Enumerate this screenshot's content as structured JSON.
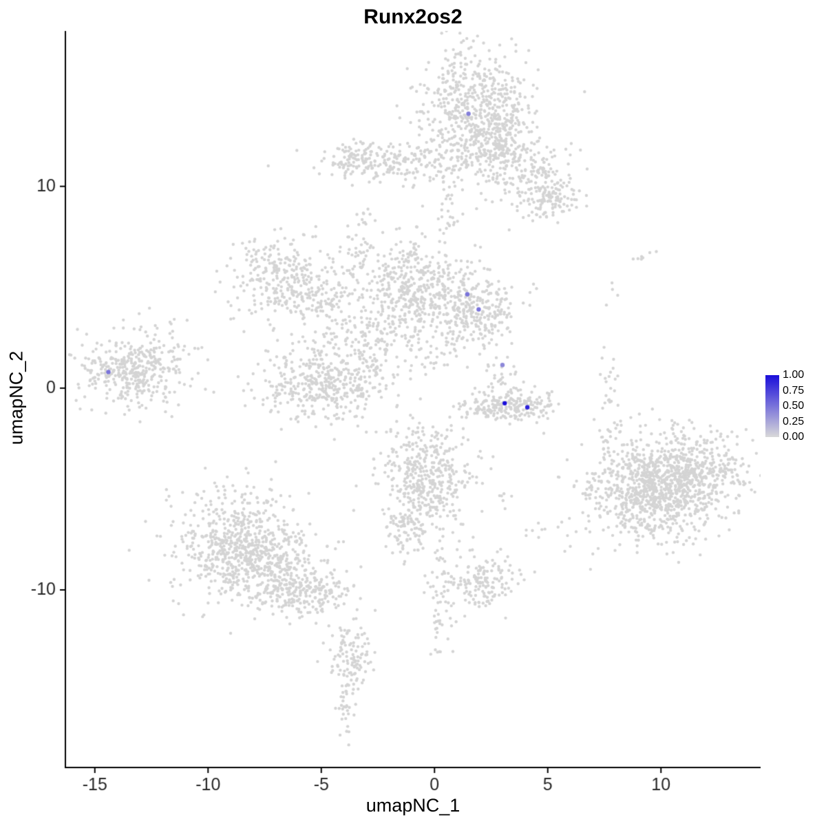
{
  "chart_data": {
    "type": "scatter",
    "title": "Runx2os2",
    "xlabel": "umapNC_1",
    "ylabel": "umapNC_2",
    "xlim": [
      -16.3,
      14.4
    ],
    "ylim": [
      -18.8,
      17.7
    ],
    "xticks": [
      -15,
      -10,
      -5,
      0,
      5,
      10
    ],
    "yticks": [
      -10,
      0,
      10
    ],
    "grid": false,
    "point_color_zero": "#D4D4D4",
    "axis_color": "#000000",
    "tick_label_color": "#262626",
    "legend": {
      "position": "right",
      "ticks": [
        "1.00",
        "0.75",
        "0.50",
        "0.25",
        "0.00"
      ],
      "color_high": "#1A0EDA",
      "color_low": "#D9D9D9"
    },
    "background_clusters": [
      {
        "cx": 1.8,
        "cy": 13.7,
        "sx": 1.25,
        "sy": 1.6,
        "n": 620
      },
      {
        "cx": 3.0,
        "cy": 12.0,
        "sx": 0.7,
        "sy": 0.9,
        "n": 150
      },
      {
        "cx": 4.3,
        "cy": 10.5,
        "sx": 0.9,
        "sy": 0.9,
        "n": 150
      },
      {
        "cx": 5.3,
        "cy": 9.4,
        "sx": 0.65,
        "sy": 0.5,
        "n": 90
      },
      {
        "cx": -1.6,
        "cy": 11.2,
        "sx": 1.6,
        "sy": 0.5,
        "n": 200
      },
      {
        "cx": -3.6,
        "cy": 11.4,
        "sx": 0.5,
        "sy": 0.45,
        "n": 60
      },
      {
        "cx": 0.6,
        "cy": 8.6,
        "sx": 0.3,
        "sy": 1.1,
        "n": 28
      },
      {
        "cx": -3.1,
        "cy": 8.4,
        "sx": 0.3,
        "sy": 0.25,
        "n": 10
      },
      {
        "cx": -6.9,
        "cy": 5.5,
        "sx": 1.0,
        "sy": 1.0,
        "n": 260
      },
      {
        "cx": -5.0,
        "cy": 4.4,
        "sx": 0.9,
        "sy": 0.7,
        "n": 110
      },
      {
        "cx": -3.4,
        "cy": 6.4,
        "sx": 0.5,
        "sy": 0.9,
        "n": 45
      },
      {
        "cx": -0.9,
        "cy": 4.8,
        "sx": 1.05,
        "sy": 1.2,
        "n": 430
      },
      {
        "cx": 1.9,
        "cy": 4.0,
        "sx": 0.85,
        "sy": 0.95,
        "n": 270
      },
      {
        "cx": -2.7,
        "cy": 2.6,
        "sx": 1.4,
        "sy": 0.9,
        "n": 120
      },
      {
        "cx": -13.3,
        "cy": 0.9,
        "sx": 1.2,
        "sy": 0.95,
        "n": 380
      },
      {
        "cx": -11.2,
        "cy": 2.0,
        "sx": 0.7,
        "sy": 0.5,
        "n": 16
      },
      {
        "cx": -5.0,
        "cy": 0.2,
        "sx": 1.4,
        "sy": 1.0,
        "n": 400
      },
      {
        "cx": 3.2,
        "cy": -0.9,
        "sx": 1.05,
        "sy": 0.35,
        "n": 230
      },
      {
        "cx": 3.0,
        "cy": 0.6,
        "sx": 0.45,
        "sy": 0.65,
        "n": 32
      },
      {
        "cx": -0.3,
        "cy": -4.4,
        "sx": 1.0,
        "sy": 1.3,
        "n": 420
      },
      {
        "cx": -1.3,
        "cy": -6.8,
        "sx": 0.5,
        "sy": 0.8,
        "n": 90
      },
      {
        "cx": -8.7,
        "cy": -7.6,
        "sx": 1.4,
        "sy": 1.3,
        "n": 560
      },
      {
        "cx": -7.3,
        "cy": -9.0,
        "sx": 1.2,
        "sy": 0.9,
        "n": 260
      },
      {
        "cx": -5.6,
        "cy": -10.2,
        "sx": 1.0,
        "sy": 0.6,
        "n": 190
      },
      {
        "cx": -3.8,
        "cy": -13.4,
        "sx": 0.45,
        "sy": 0.9,
        "n": 110
      },
      {
        "cx": -3.9,
        "cy": -15.9,
        "sx": 0.2,
        "sy": 0.8,
        "n": 32
      },
      {
        "cx": 10.2,
        "cy": -4.6,
        "sx": 1.6,
        "sy": 1.3,
        "n": 620
      },
      {
        "cx": 9.3,
        "cy": -5.7,
        "sx": 1.3,
        "sy": 1.0,
        "n": 330
      },
      {
        "cx": 11.3,
        "cy": -4.0,
        "sx": 1.2,
        "sy": 1.0,
        "n": 280
      },
      {
        "cx": 2.1,
        "cy": -9.6,
        "sx": 0.75,
        "sy": 0.65,
        "n": 150
      },
      {
        "cx": 0.3,
        "cy": -10.5,
        "sx": 0.3,
        "sy": 1.4,
        "n": 55
      },
      {
        "cx": 7.7,
        "cy": 0.3,
        "sx": 0.2,
        "sy": 0.9,
        "n": 22
      },
      {
        "cx": 7.8,
        "cy": -2.3,
        "sx": 0.25,
        "sy": 0.7,
        "n": 18
      },
      {
        "cx": 9.3,
        "cy": 6.6,
        "sx": 0.25,
        "sy": 0.2,
        "n": 7
      },
      {
        "cx": 7.6,
        "cy": 4.7,
        "sx": 0.3,
        "sy": 0.3,
        "n": 4
      },
      {
        "cx": 4.7,
        "cy": -7.0,
        "sx": 0.4,
        "sy": 0.4,
        "n": 8
      },
      {
        "cx": 3.0,
        "cy": -5.3,
        "sx": 0.3,
        "sy": 0.3,
        "n": 6
      },
      {
        "cx": -2.6,
        "cy": 0.9,
        "sx": 0.5,
        "sy": 0.6,
        "n": 40
      },
      {
        "cx": 0.3,
        "cy": 1.8,
        "sx": 0.6,
        "sy": 0.7,
        "n": 26
      }
    ],
    "expressing_cells": [
      {
        "x": 1.5,
        "y": 13.6,
        "value": 0.45
      },
      {
        "x": -14.4,
        "y": 0.8,
        "value": 0.5
      },
      {
        "x": 1.45,
        "y": 4.65,
        "value": 0.5
      },
      {
        "x": 1.95,
        "y": 3.9,
        "value": 0.5
      },
      {
        "x": 3.0,
        "y": 1.15,
        "value": 0.4
      },
      {
        "x": 3.1,
        "y": -0.75,
        "value": 1.0
      },
      {
        "x": 4.1,
        "y": -0.95,
        "value": 0.9
      }
    ]
  }
}
